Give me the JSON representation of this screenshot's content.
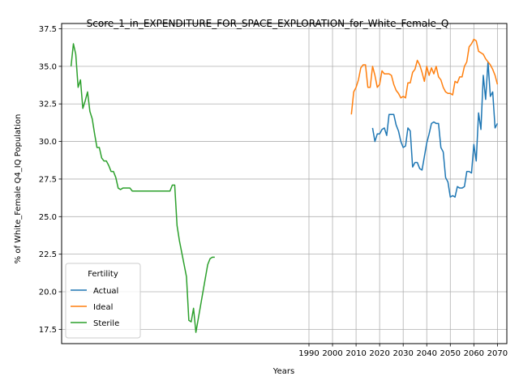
{
  "chart_data": {
    "type": "line",
    "title": "Score_1_in_EXPENDITURE_FOR_SPACE_EXPLORATION_for_White_Female_Q",
    "xlabel": "Years",
    "ylabel": "% of White_Female Q4_IQ Population",
    "xlim": [
      1885,
      2074
    ],
    "ylim": [
      16.55,
      37.85
    ],
    "xticks": [
      1990,
      2000,
      2010,
      2020,
      2030,
      2040,
      2050,
      2060,
      2070
    ],
    "yticks": [
      17.5,
      20.0,
      22.5,
      25.0,
      27.5,
      30.0,
      32.5,
      35.0,
      37.5
    ],
    "grid": true,
    "legend": {
      "title": "Fertility",
      "position": "bottom-left"
    },
    "series": [
      {
        "name": "Actual",
        "color": "#1f77b4",
        "x": [
          2017,
          2018,
          2019,
          2020,
          2021,
          2022,
          2023,
          2024,
          2025,
          2026,
          2027,
          2028,
          2029,
          2030,
          2031,
          2032,
          2033,
          2034,
          2035,
          2036,
          2037,
          2038,
          2039,
          2040,
          2041,
          2042,
          2043,
          2044,
          2045,
          2046,
          2047,
          2048,
          2049,
          2050,
          2051,
          2052,
          2053,
          2054,
          2055,
          2056,
          2057,
          2058,
          2059,
          2060,
          2061,
          2062,
          2063,
          2064,
          2065,
          2066,
          2067,
          2068,
          2069,
          2070
        ],
        "y": [
          30.9,
          30.0,
          30.5,
          30.5,
          30.8,
          30.9,
          30.4,
          31.8,
          31.8,
          31.8,
          31.1,
          30.7,
          30.0,
          29.6,
          29.7,
          30.9,
          30.7,
          28.3,
          28.6,
          28.6,
          28.2,
          28.1,
          29.0,
          29.9,
          30.5,
          31.2,
          31.3,
          31.2,
          31.2,
          29.6,
          29.3,
          27.6,
          27.3,
          26.3,
          26.4,
          26.3,
          27.0,
          26.9,
          26.9,
          27.0,
          28.0,
          28.0,
          27.9,
          29.8,
          28.7,
          31.9,
          30.8,
          34.4,
          32.8,
          35.3,
          33.0,
          33.3,
          30.9,
          31.2
        ]
      },
      {
        "name": "Ideal",
        "color": "#ff7f0e",
        "x": [
          2008,
          2009,
          2010,
          2011,
          2012,
          2013,
          2014,
          2015,
          2016,
          2017,
          2018,
          2019,
          2020,
          2021,
          2022,
          2023,
          2024,
          2025,
          2026,
          2027,
          2028,
          2029,
          2030,
          2031,
          2032,
          2033,
          2034,
          2035,
          2036,
          2037,
          2038,
          2039,
          2040,
          2041,
          2042,
          2043,
          2044,
          2045,
          2046,
          2047,
          2048,
          2049,
          2050,
          2051,
          2052,
          2053,
          2054,
          2055,
          2056,
          2057,
          2058,
          2059,
          2060,
          2061,
          2062,
          2063,
          2064,
          2065,
          2066,
          2067,
          2068,
          2069,
          2070
        ],
        "y": [
          31.8,
          33.3,
          33.6,
          34.1,
          34.9,
          35.1,
          35.1,
          33.6,
          33.6,
          35.0,
          34.4,
          33.6,
          33.8,
          34.7,
          34.5,
          34.5,
          34.5,
          34.4,
          33.8,
          33.4,
          33.2,
          32.9,
          33.0,
          32.9,
          33.9,
          33.9,
          34.6,
          34.8,
          35.4,
          35.1,
          34.6,
          34.0,
          35.0,
          34.4,
          34.9,
          34.5,
          35.0,
          34.3,
          34.1,
          33.6,
          33.3,
          33.2,
          33.2,
          33.1,
          34.0,
          33.9,
          34.3,
          34.3,
          35.0,
          35.3,
          36.3,
          36.5,
          36.8,
          36.7,
          36.0,
          35.9,
          35.8,
          35.5,
          35.3,
          35.1,
          34.8,
          34.4,
          33.8
        ]
      },
      {
        "name": "Sterile",
        "color": "#2ca02c",
        "x": [
          1889,
          1890,
          1891,
          1892,
          1893,
          1894,
          1895,
          1896,
          1897,
          1898,
          1899,
          1900,
          1901,
          1902,
          1903,
          1904,
          1905,
          1906,
          1907,
          1908,
          1909,
          1910,
          1911,
          1912,
          1913,
          1914,
          1915,
          1916,
          1917,
          1918,
          1919,
          1920,
          1921,
          1922,
          1923,
          1924,
          1925,
          1926,
          1927,
          1928,
          1929,
          1930,
          1931,
          1932,
          1933,
          1934,
          1935,
          1936,
          1937,
          1938,
          1939,
          1940,
          1941,
          1942,
          1943,
          1944,
          1945,
          1946,
          1947,
          1948,
          1949,
          1950
        ],
        "y": [
          35.0,
          36.5,
          35.8,
          33.6,
          34.1,
          32.2,
          32.7,
          33.3,
          32.0,
          31.5,
          30.5,
          29.6,
          29.6,
          28.9,
          28.7,
          28.7,
          28.4,
          28.0,
          28.0,
          27.6,
          26.9,
          26.8,
          26.9,
          26.9,
          26.9,
          26.9,
          26.7,
          26.7,
          26.7,
          26.7,
          26.7,
          26.7,
          26.7,
          26.7,
          26.7,
          26.7,
          26.7,
          26.7,
          26.7,
          26.7,
          26.7,
          26.7,
          26.7,
          27.1,
          27.1,
          24.4,
          23.4,
          22.6,
          21.8,
          21.0,
          18.1,
          18.0,
          18.9,
          17.3,
          18.2,
          19.1,
          20.0,
          20.9,
          21.8,
          22.2,
          22.3,
          22.3
        ]
      }
    ]
  }
}
